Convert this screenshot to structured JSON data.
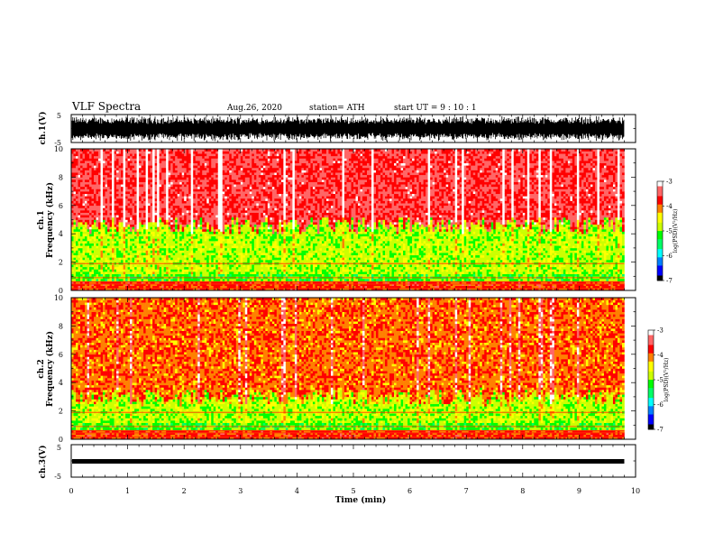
{
  "header": {
    "title": "VLF Spectra",
    "date": "Aug.26, 2020",
    "station": "station= ATH",
    "start": "start  UT =  9 : 10 : 1"
  },
  "chart_data": [
    {
      "type": "line",
      "name": "waveform-ch1",
      "ylabel": "ch.1(V)",
      "ylim": [
        -5,
        5
      ],
      "yticks": [
        "5",
        "-5"
      ],
      "xlim": [
        0,
        10
      ]
    },
    {
      "type": "heatmap",
      "name": "spectrogram-ch1",
      "ylabel": "ch.1\nFrequency (kHz)",
      "ylabel_lines": [
        "ch.1",
        "Frequency (kHz)"
      ],
      "ylim": [
        0,
        10
      ],
      "yticks": [
        "0",
        "2",
        "4",
        "6",
        "8",
        "10"
      ],
      "xlim": [
        0,
        10
      ],
      "colorbar": {
        "label": "log(PSD)(V²/Hz)",
        "ticks": [
          "-3",
          "-4",
          "-5",
          "-6",
          "-7"
        ],
        "range": [
          -7,
          -3
        ]
      },
      "noise_floor_khz": 4.6
    },
    {
      "type": "heatmap",
      "name": "spectrogram-ch2",
      "ylabel": "ch.2\nFrequency (kHz)",
      "ylabel_lines": [
        "ch.2",
        "Frequency (kHz)"
      ],
      "ylim": [
        0,
        10
      ],
      "yticks": [
        "0",
        "2",
        "4",
        "6",
        "8",
        "10"
      ],
      "xlim": [
        0,
        10
      ],
      "colorbar": {
        "label": "log(PSD)(V²/Hz)",
        "ticks": [
          "-3",
          "-4",
          "-5",
          "-6",
          "-7"
        ],
        "range": [
          -7,
          -3
        ]
      },
      "noise_floor_khz": 3.0
    },
    {
      "type": "line",
      "name": "waveform-ch3",
      "ylabel": "ch.3(V)",
      "ylim": [
        -5,
        5
      ],
      "yticks": [
        "5",
        "-5"
      ],
      "xlim": [
        0,
        10
      ]
    }
  ],
  "xaxis": {
    "label": "Time (min)",
    "ticks": [
      "0",
      "1",
      "2",
      "3",
      "4",
      "5",
      "6",
      "7",
      "8",
      "9",
      "10"
    ],
    "data_end_min": 9.8
  },
  "colors": {
    "colormap": [
      "#000000",
      "#0000ff",
      "#00aaff",
      "#00ffaa",
      "#00ff00",
      "#aaff00",
      "#ffff00",
      "#ffaa00",
      "#ff0000",
      "#ffffff"
    ],
    "ch1_line": "#000000",
    "ch3_line": "#000000"
  }
}
